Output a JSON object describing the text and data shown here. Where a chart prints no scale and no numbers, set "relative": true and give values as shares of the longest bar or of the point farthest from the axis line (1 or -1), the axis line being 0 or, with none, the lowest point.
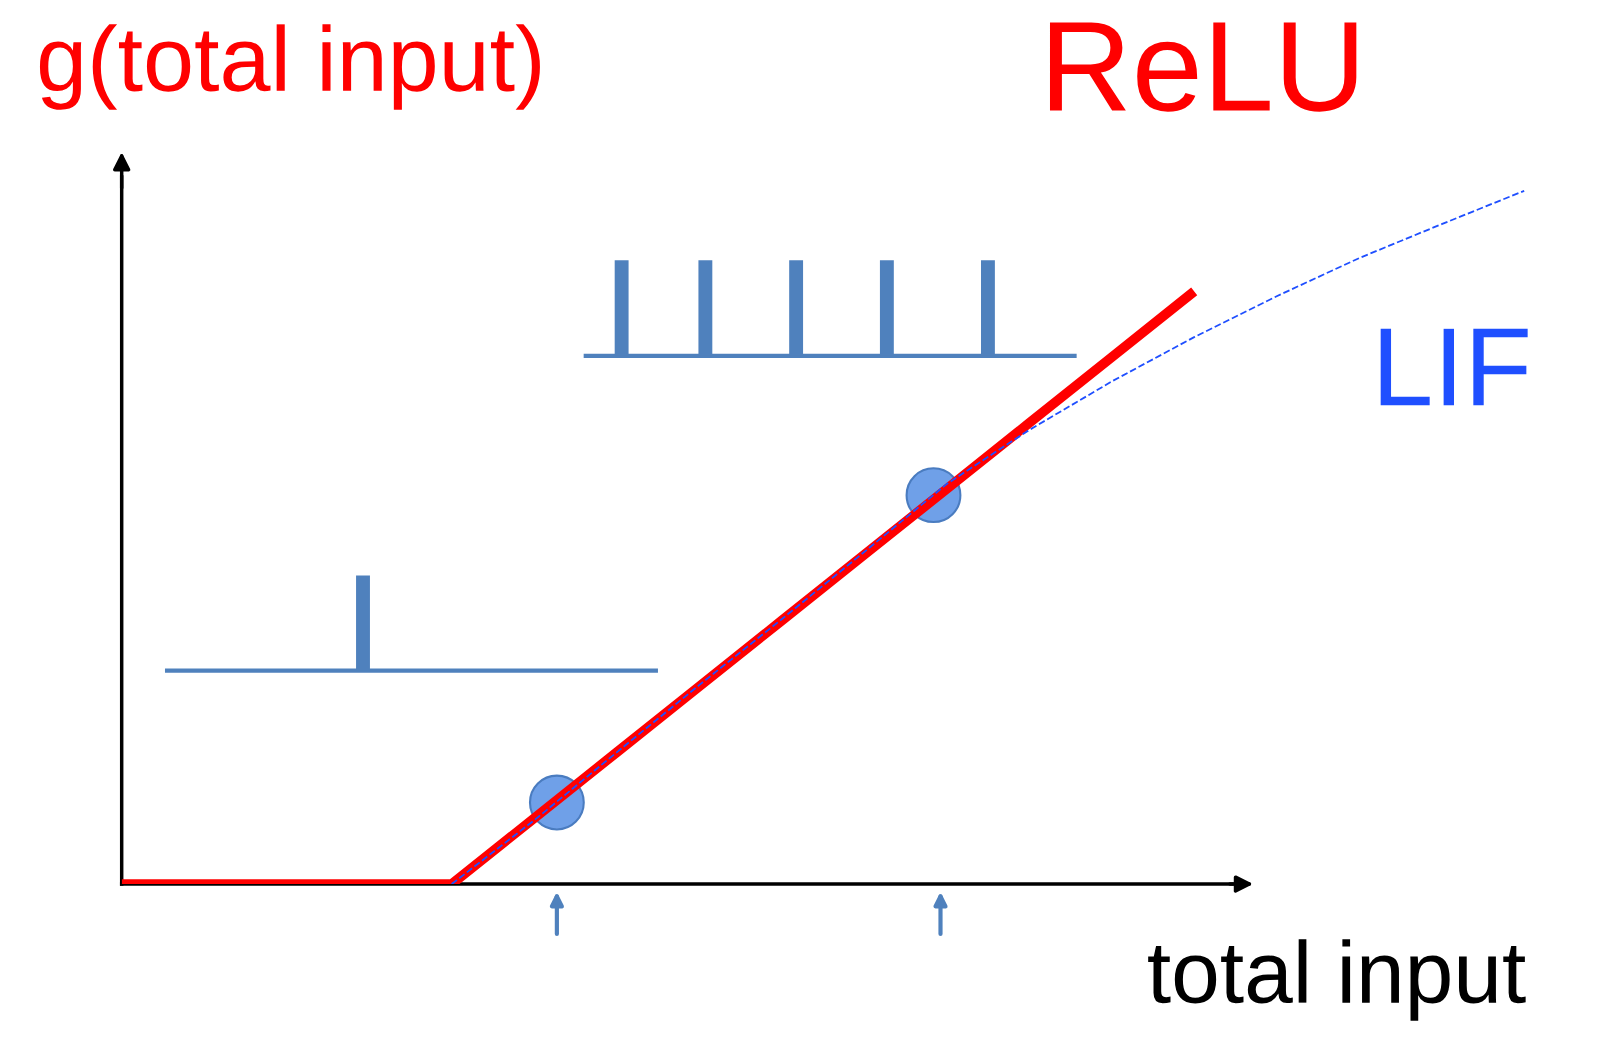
{
  "chart_data": {
    "type": "line",
    "relative": true,
    "xlabel": "total input",
    "ylabel": "g(total input)",
    "categories": [
      null,
      null,
      null,
      null,
      null,
      null,
      null,
      null,
      null,
      null,
      null,
      null,
      null,
      null,
      null,
      null,
      null,
      null
    ],
    "series": [
      {
        "name": "ReLU",
        "color": "#ff0000",
        "line_style": "solid",
        "values": [
          0,
          0,
          0,
          0,
          0,
          0.095,
          0.19,
          0.285,
          0.38,
          0.475,
          0.57,
          0.665,
          0.76,
          0.855,
          null,
          null,
          null,
          null
        ]
      },
      {
        "name": "LIF",
        "color": "#1f4fff",
        "line_style": "dashed",
        "values": [
          null,
          null,
          null,
          null,
          0,
          0.092,
          0.19,
          0.287,
          0.382,
          0.479,
          0.577,
          0.655,
          0.725,
          0.789,
          0.848,
          0.903,
          0.952,
          1.0
        ]
      }
    ],
    "legend": false,
    "marker": "none"
  }
}
